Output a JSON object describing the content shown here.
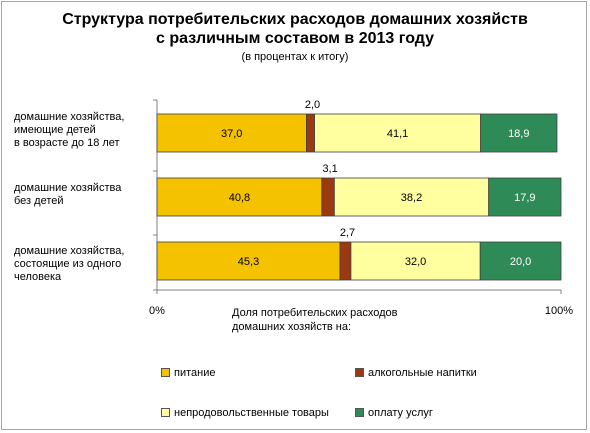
{
  "header": {
    "title_line1": "Структура потребительских расходов  домашних хозяйств",
    "title_line2": "с различным составом в 2013 году",
    "subtitle": "(в процентах к итогу)"
  },
  "categories": [
    [
      "домашние хозяйства,",
      "имеющие детей",
      "в возрасте до 18 лет"
    ],
    [
      "домашние хозяйства",
      "без детей"
    ],
    [
      "домашние хозяйства,",
      "состоящие из одного",
      "человека"
    ]
  ],
  "x_axis": {
    "tick_min": "0%",
    "tick_max": "100%",
    "title_line1": "Доля потребительских расходов",
    "title_line2": "домашних хозяйств на:"
  },
  "legend": [
    {
      "label": "питание",
      "color": "#f5c200"
    },
    {
      "label": "алкогольные напитки",
      "color": "#9b3a10"
    },
    {
      "label": "непродовольственные товары",
      "color": "#ffffa0"
    },
    {
      "label": "оплату услуг",
      "color": "#2e8b57"
    }
  ],
  "chart_data": {
    "type": "bar",
    "orientation": "horizontal",
    "stacked": true,
    "categories": [
      "домашние хозяйства, имеющие детей в возрасте до 18 лет",
      "домашние хозяйства без детей",
      "домашние хозяйства, состоящие из одного человека"
    ],
    "series": [
      {
        "name": "питание",
        "color": "#f5c200",
        "values": [
          37.0,
          40.8,
          45.3
        ],
        "labels": [
          "37,0",
          "40,8",
          "45,3"
        ]
      },
      {
        "name": "алкогольные напитки",
        "color": "#9b3a10",
        "values": [
          2.0,
          3.1,
          2.7
        ],
        "labels": [
          "2,0",
          "3,1",
          "2,7"
        ]
      },
      {
        "name": "непродовольственные товары",
        "color": "#ffffa0",
        "values": [
          41.1,
          38.2,
          32.0
        ],
        "labels": [
          "41,1",
          "38,2",
          "32,0"
        ]
      },
      {
        "name": "оплату услуг",
        "color": "#2e8b57",
        "values": [
          18.9,
          17.9,
          20.0
        ],
        "labels": [
          "18,9",
          "17,9",
          "20,0"
        ]
      }
    ],
    "xlim": [
      0,
      100
    ],
    "grid": false,
    "legend_position": "bottom"
  }
}
